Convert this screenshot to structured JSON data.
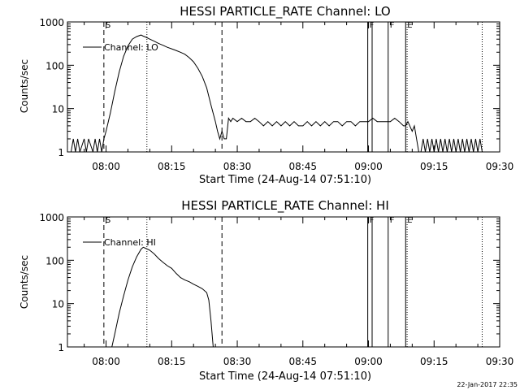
{
  "footer_date": "22-Jan-2017 22:35",
  "chart_data": [
    {
      "type": "line",
      "title": "HESSI PARTICLE_RATE Channel: LO",
      "xlabel": "Start Time (24-Aug-14 07:51:10)",
      "ylabel": "Counts/sec",
      "yscale": "log",
      "xlim": [
        "07:51:10",
        "09:30:00"
      ],
      "ylim": [
        1,
        1000
      ],
      "x_tick_labels": [
        "08:00",
        "08:15",
        "08:30",
        "08:45",
        "09:00",
        "09:15",
        "09:30"
      ],
      "y_tick_labels": [
        "1",
        "10",
        "100",
        "1000"
      ],
      "legend": {
        "position": "top-left",
        "entries": [
          "Channel: LO"
        ]
      },
      "markers": [
        {
          "time": "07:59:30",
          "style": "dashed",
          "label": "S"
        },
        {
          "time": "08:09:20",
          "style": "dotted",
          "label": ""
        },
        {
          "time": "08:26:30",
          "style": "dashed",
          "label": ""
        },
        {
          "time": "08:59:50",
          "style": "solid",
          "label": "F"
        },
        {
          "time": "09:00:50",
          "style": "solid",
          "label": ""
        },
        {
          "time": "09:04:30",
          "style": "solid",
          "label": "F"
        },
        {
          "time": "09:08:30",
          "style": "solid",
          "label": "E"
        },
        {
          "time": "09:08:50",
          "style": "dotted",
          "label": ""
        },
        {
          "time": "09:26:00",
          "style": "dotted",
          "label": ""
        }
      ],
      "series": [
        {
          "name": "Channel: LO",
          "x": [
            "07:51:10",
            "07:52:00",
            "07:52:30",
            "07:53:00",
            "07:53:30",
            "07:54:00",
            "07:55:00",
            "07:55:30",
            "07:56:00",
            "07:57:00",
            "07:57:30",
            "07:58:00",
            "07:58:30",
            "07:59:00",
            "07:59:30",
            "08:00:00",
            "08:01:00",
            "08:02:00",
            "08:03:00",
            "08:04:00",
            "08:05:00",
            "08:06:00",
            "08:07:00",
            "08:08:00",
            "08:08:30",
            "08:09:00",
            "08:10:00",
            "08:11:00",
            "08:12:00",
            "08:13:00",
            "08:14:00",
            "08:15:00",
            "08:16:00",
            "08:17:00",
            "08:18:00",
            "08:19:00",
            "08:20:00",
            "08:21:00",
            "08:22:00",
            "08:23:00",
            "08:24:00",
            "08:25:00",
            "08:25:30",
            "08:26:00",
            "08:26:30",
            "08:27:00",
            "08:27:30",
            "08:28:00",
            "08:28:30",
            "08:29:00",
            "08:30:00",
            "08:31:00",
            "08:32:00",
            "08:33:00",
            "08:34:00",
            "08:35:00",
            "08:36:00",
            "08:37:00",
            "08:38:00",
            "08:39:00",
            "08:40:00",
            "08:41:00",
            "08:42:00",
            "08:43:00",
            "08:44:00",
            "08:45:00",
            "08:46:00",
            "08:47:00",
            "08:48:00",
            "08:49:00",
            "08:50:00",
            "08:51:00",
            "08:52:00",
            "08:53:00",
            "08:54:00",
            "08:55:00",
            "08:56:00",
            "08:57:00",
            "08:58:00",
            "08:59:00",
            "09:00:00",
            "09:01:00",
            "09:02:00",
            "09:03:00",
            "09:04:00",
            "09:05:00",
            "09:06:00",
            "09:07:00",
            "09:08:00",
            "09:08:30",
            "09:09:00",
            "09:10:00",
            "09:10:30",
            "09:11:00",
            "09:11:30",
            "09:12:00",
            "09:12:30",
            "09:13:00",
            "09:13:30",
            "09:14:00",
            "09:14:30",
            "09:15:00",
            "09:15:30",
            "09:16:00",
            "09:16:30",
            "09:17:00",
            "09:17:30",
            "09:18:00",
            "09:18:30",
            "09:19:00",
            "09:19:30",
            "09:20:00",
            "09:20:30",
            "09:21:00",
            "09:21:30",
            "09:22:00",
            "09:22:30",
            "09:23:00",
            "09:23:30",
            "09:24:00",
            "09:24:30",
            "09:25:00",
            "09:25:30",
            "09:26:00",
            "09:27:00",
            "09:28:00",
            "09:29:00",
            "09:30:00"
          ],
          "y": [
            1,
            1,
            2,
            1,
            2,
            1,
            2,
            1,
            2,
            1,
            2,
            1,
            2,
            1,
            2,
            3,
            8,
            25,
            70,
            160,
            280,
            400,
            460,
            500,
            470,
            450,
            400,
            360,
            320,
            290,
            260,
            240,
            220,
            200,
            180,
            150,
            120,
            85,
            55,
            30,
            12,
            5,
            3,
            2,
            3,
            2,
            2,
            6,
            5,
            6,
            5,
            6,
            5,
            5,
            6,
            5,
            4,
            5,
            4,
            5,
            4,
            5,
            4,
            5,
            4,
            4,
            5,
            4,
            5,
            4,
            5,
            4,
            5,
            5,
            4,
            5,
            5,
            4,
            5,
            5,
            5,
            6,
            5,
            5,
            5,
            5,
            6,
            5,
            4,
            4,
            5,
            3,
            4,
            2,
            1,
            1,
            2,
            1,
            2,
            1,
            2,
            1,
            2,
            1,
            2,
            1,
            2,
            1,
            2,
            1,
            2,
            1,
            2,
            1,
            2,
            1,
            2,
            1,
            2,
            1,
            2,
            1,
            2,
            1,
            1,
            1,
            1,
            1
          ]
        }
      ]
    },
    {
      "type": "line",
      "title": "HESSI PARTICLE_RATE Channel: HI",
      "xlabel": "Start Time (24-Aug-14 07:51:10)",
      "ylabel": "Counts/sec",
      "yscale": "log",
      "xlim": [
        "07:51:10",
        "09:30:00"
      ],
      "ylim": [
        1,
        1000
      ],
      "x_tick_labels": [
        "08:00",
        "08:15",
        "08:30",
        "08:45",
        "09:00",
        "09:15",
        "09:30"
      ],
      "y_tick_labels": [
        "1",
        "10",
        "100",
        "1000"
      ],
      "legend": {
        "position": "top-left",
        "entries": [
          "Channel: HI"
        ]
      },
      "markers": [
        {
          "time": "07:59:30",
          "style": "dashed",
          "label": "S"
        },
        {
          "time": "08:09:20",
          "style": "dotted",
          "label": ""
        },
        {
          "time": "08:26:30",
          "style": "dashed",
          "label": ""
        },
        {
          "time": "08:59:50",
          "style": "solid",
          "label": "F"
        },
        {
          "time": "09:00:50",
          "style": "solid",
          "label": ""
        },
        {
          "time": "09:04:30",
          "style": "solid",
          "label": "F"
        },
        {
          "time": "09:08:30",
          "style": "solid",
          "label": "E"
        },
        {
          "time": "09:08:50",
          "style": "dotted",
          "label": ""
        },
        {
          "time": "09:26:00",
          "style": "dotted",
          "label": ""
        }
      ],
      "series": [
        {
          "name": "Channel: HI",
          "x": [
            "08:01:20",
            "08:02:00",
            "08:03:00",
            "08:04:00",
            "08:05:00",
            "08:06:00",
            "08:07:00",
            "08:08:00",
            "08:08:30",
            "08:09:00",
            "08:10:00",
            "08:11:00",
            "08:12:00",
            "08:13:00",
            "08:14:00",
            "08:15:00",
            "08:16:00",
            "08:17:00",
            "08:18:00",
            "08:19:00",
            "08:20:00",
            "08:21:00",
            "08:22:00",
            "08:23:00",
            "08:23:30",
            "08:24:00",
            "08:24:30"
          ],
          "y": [
            1,
            2,
            6,
            15,
            35,
            70,
            120,
            180,
            200,
            190,
            170,
            140,
            110,
            90,
            75,
            65,
            50,
            40,
            35,
            32,
            28,
            25,
            22,
            18,
            12,
            4,
            1
          ]
        }
      ]
    }
  ]
}
